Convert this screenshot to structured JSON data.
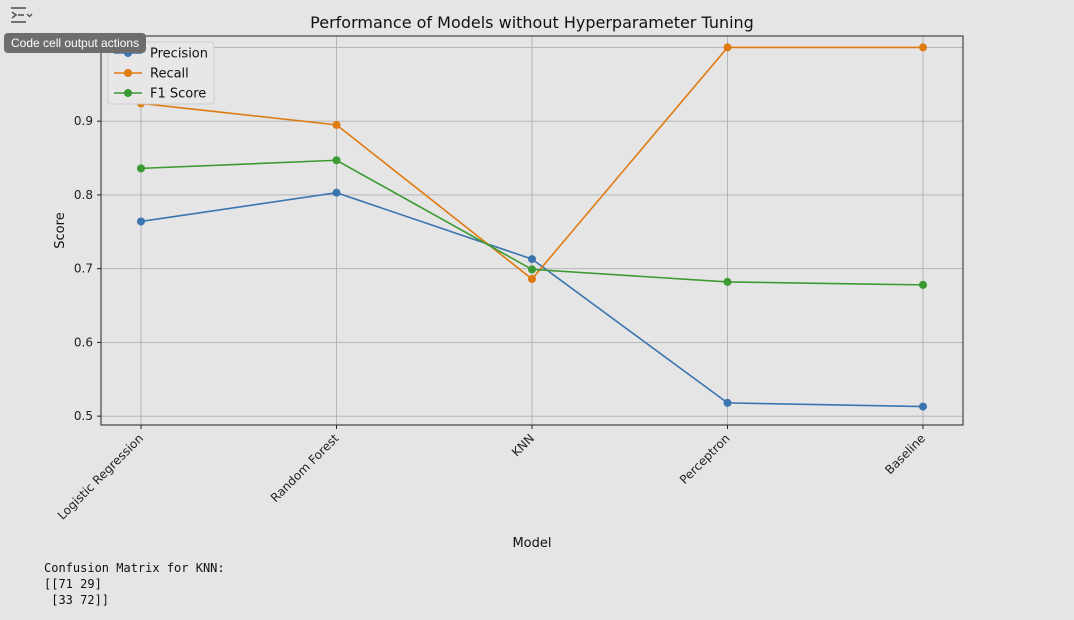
{
  "toolbar": {
    "output_actions_icon": "output-collapse-icon",
    "tooltip": "Code cell output actions"
  },
  "colors": {
    "background": "#e5e5e5",
    "precision": "#3a75b0",
    "recall": "#e07b10",
    "f1": "#3c9a32",
    "grid": "#b0b0b0"
  },
  "chart_data": {
    "type": "line",
    "title": "Performance of Models without Hyperparameter Tuning",
    "xlabel": "Model",
    "ylabel": "Score",
    "categories": [
      "Logistic Regression",
      "Random Forest",
      "KNN",
      "Perceptron",
      "Baseline"
    ],
    "series": [
      {
        "name": "Precision",
        "values": [
          0.764,
          0.803,
          0.713,
          0.518,
          0.513
        ]
      },
      {
        "name": "Recall",
        "values": [
          0.924,
          0.895,
          0.686,
          1.0,
          1.0
        ]
      },
      {
        "name": "F1 Score",
        "values": [
          0.836,
          0.847,
          0.699,
          0.682,
          0.678
        ]
      }
    ],
    "ylim": [
      0.488,
      1.0155
    ],
    "yticks": [
      "0.5",
      "0.6",
      "0.7",
      "0.8",
      "0.9",
      "1.0"
    ],
    "grid": true,
    "legend": "top-left",
    "marker": "circle"
  },
  "console": {
    "lines": [
      "Confusion Matrix for KNN:",
      "[[71 29]",
      " [33 72]]"
    ]
  }
}
